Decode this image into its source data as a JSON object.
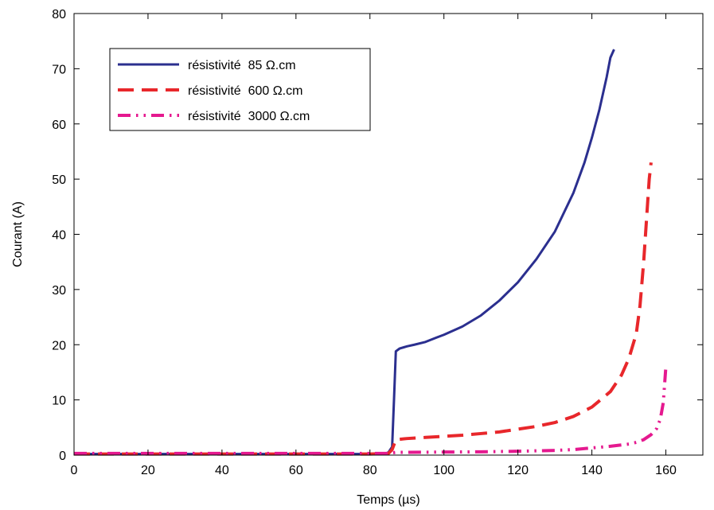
{
  "chart_data": {
    "type": "line",
    "title": "",
    "xlabel": "Temps (µs)",
    "ylabel": "Courant (A)",
    "xlim": [
      0,
      170
    ],
    "ylim": [
      0,
      80
    ],
    "xticks": [
      0,
      20,
      40,
      60,
      80,
      100,
      120,
      140,
      160
    ],
    "yticks": [
      0,
      10,
      20,
      30,
      40,
      50,
      60,
      70,
      80
    ],
    "xtick_labels": [
      "0",
      "20",
      "40",
      "60",
      "80",
      "100",
      "120",
      "140",
      "160"
    ],
    "ytick_labels": [
      "0",
      "10",
      "20",
      "30",
      "40",
      "50",
      "60",
      "70",
      "80"
    ],
    "grid": false,
    "legend_position": "top-left",
    "series": [
      {
        "name": "résistivité  85 Ω.cm",
        "color": "#2b2f8f",
        "style": "solid",
        "x": [
          0,
          20,
          40,
          60,
          80,
          84,
          85,
          86,
          86.5,
          87,
          88,
          90,
          92,
          95,
          98,
          100,
          105,
          110,
          115,
          120,
          125,
          130,
          135,
          138,
          140,
          142,
          144,
          145,
          146
        ],
        "y": [
          0.2,
          0.2,
          0.2,
          0.2,
          0.2,
          0.2,
          0.5,
          1.5,
          10,
          18.8,
          19.3,
          19.7,
          20.0,
          20.5,
          21.3,
          21.8,
          23.3,
          25.3,
          28.0,
          31.3,
          35.5,
          40.5,
          47.5,
          53.0,
          57.5,
          62.5,
          68.5,
          72.0,
          73.5
        ]
      },
      {
        "name": "résistivité  600 Ω.cm",
        "color": "#e8272b",
        "style": "dashed",
        "x": [
          0,
          20,
          40,
          60,
          80,
          85,
          86,
          87,
          90,
          95,
          100,
          105,
          110,
          115,
          120,
          125,
          130,
          135,
          140,
          145,
          148,
          150,
          152,
          153,
          154,
          155,
          155.5,
          156
        ],
        "y": [
          0.2,
          0.2,
          0.2,
          0.2,
          0.2,
          0.3,
          1.0,
          2.8,
          3.0,
          3.2,
          3.4,
          3.6,
          3.9,
          4.2,
          4.7,
          5.2,
          5.9,
          7.0,
          8.7,
          11.5,
          14.5,
          17.5,
          22.0,
          27.0,
          35.0,
          45.0,
          50.0,
          53.0
        ]
      },
      {
        "name": "résistivité  3000 Ω.cm",
        "color": "#e5198f",
        "style": "dashdotdot",
        "x": [
          0,
          20,
          40,
          60,
          80,
          85,
          86,
          87,
          90,
          100,
          110,
          120,
          130,
          135,
          140,
          145,
          150,
          152,
          154,
          156,
          157.5,
          158.5,
          159.3,
          160
        ],
        "y": [
          0.3,
          0.3,
          0.3,
          0.3,
          0.3,
          0.3,
          0.4,
          0.5,
          0.5,
          0.55,
          0.6,
          0.7,
          0.85,
          1.0,
          1.3,
          1.6,
          2.0,
          2.3,
          2.8,
          3.7,
          4.8,
          6.5,
          9.5,
          16.0
        ]
      }
    ]
  }
}
